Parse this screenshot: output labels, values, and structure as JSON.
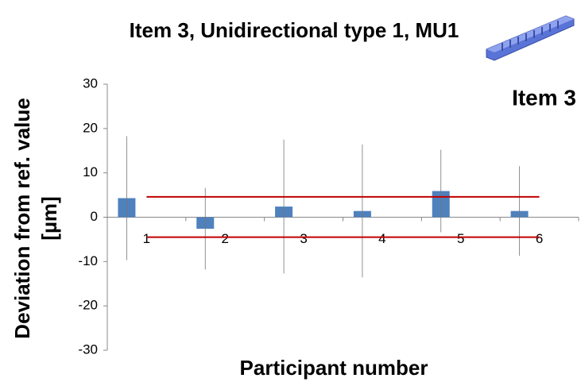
{
  "chart_data": {
    "type": "bar",
    "title": "Item 3, Unidirectional type 1, MU1",
    "annotation": "Item 3",
    "y_label_lines": [
      "Deviation from ref. value",
      "[µm]"
    ],
    "x_label": "Participant number",
    "categories": [
      "1",
      "2",
      "3",
      "4",
      "5",
      "6"
    ],
    "values": [
      4.3,
      -2.6,
      2.4,
      1.4,
      5.9,
      1.4
    ],
    "errors": [
      14,
      9.2,
      15.1,
      15,
      9.3,
      10.1
    ],
    "color": "#4f81bd",
    "reference_lines": {
      "values": [
        4.6,
        -4.5
      ],
      "color": "#c00000"
    },
    "ylim": [
      -30,
      30
    ],
    "yticks": [
      -30,
      -20,
      -10,
      0,
      10,
      20,
      30
    ]
  }
}
